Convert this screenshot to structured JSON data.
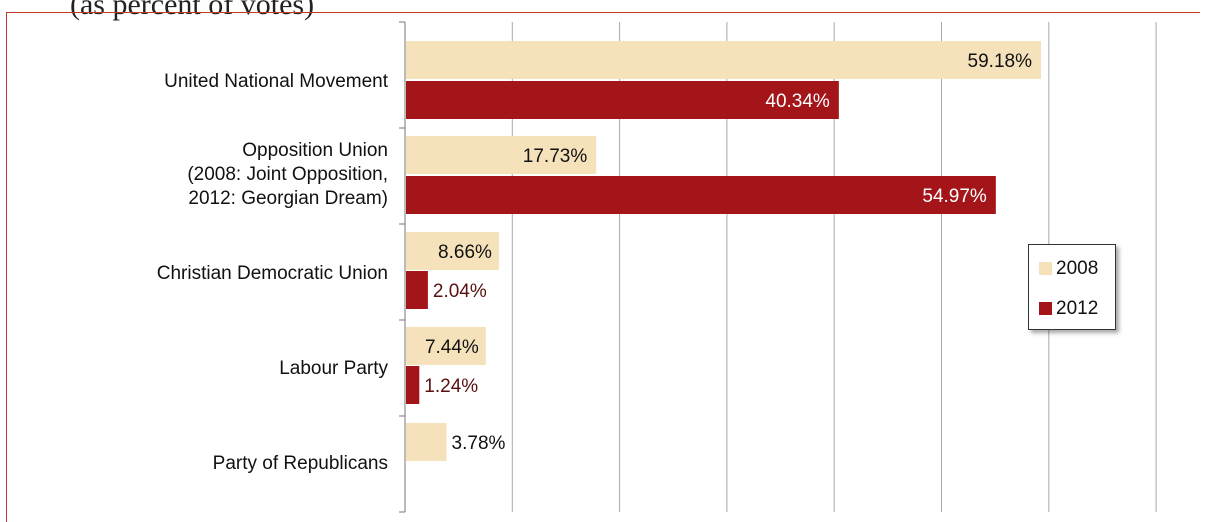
{
  "title_fragment": "(as percent of votes)",
  "chart_data": {
    "type": "bar",
    "orientation": "horizontal",
    "categories": [
      [
        "United National Movement"
      ],
      [
        "Opposition Union",
        "(2008: Joint Opposition,",
        "2012: Georgian Dream)"
      ],
      [
        "Christian Democratic Union"
      ],
      [
        "Labour Party"
      ],
      [
        "Party of Republicans"
      ]
    ],
    "series": [
      {
        "name": "2008",
        "color": "#f5e2bb",
        "values": [
          59.18,
          17.73,
          8.66,
          7.44,
          3.78
        ],
        "labels": [
          "59.18%",
          "17.73%",
          "8.66%",
          "7.44%",
          "3.78%"
        ]
      },
      {
        "name": "2012",
        "color": "#a31519",
        "values": [
          40.34,
          54.97,
          2.04,
          1.24,
          null
        ],
        "labels": [
          "40.34%",
          "54.97%",
          "2.04%",
          "1.24%",
          ""
        ]
      }
    ],
    "xlim": [
      0,
      70
    ],
    "grid": true,
    "legend_position": "right"
  }
}
